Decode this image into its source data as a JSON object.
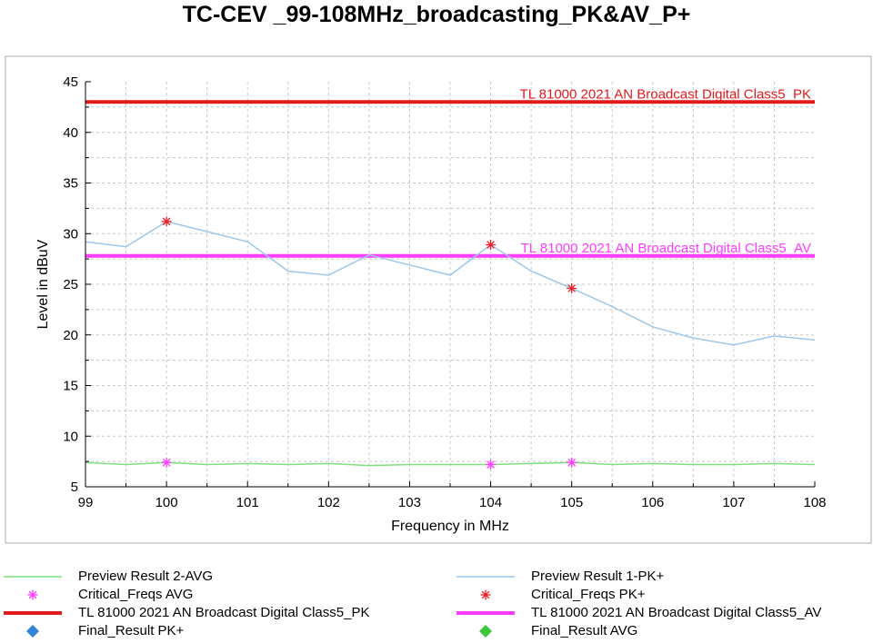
{
  "chart_data": {
    "type": "line",
    "title": "TC-CEV _99-108MHz_broadcasting_PK&AV_P+",
    "xlabel": "Frequency in MHz",
    "ylabel": "Level in dBuV",
    "xlim": [
      99,
      108
    ],
    "ylim": [
      5,
      45
    ],
    "x_ticks": [
      99,
      100,
      101,
      102,
      103,
      104,
      105,
      106,
      107,
      108
    ],
    "y_ticks": [
      5,
      10,
      15,
      20,
      25,
      30,
      35,
      40,
      45
    ],
    "grid": true,
    "legend_placement": "bottom",
    "series": [
      {
        "name": "Preview Result 2-AVG",
        "kind": "line",
        "color": "#7ee07e",
        "x": [
          99,
          99.5,
          100,
          100.5,
          101,
          101.5,
          102,
          102.5,
          103,
          103.5,
          104,
          104.5,
          105,
          105.5,
          106,
          106.5,
          107,
          107.5,
          108
        ],
        "y": [
          7.4,
          7.2,
          7.4,
          7.2,
          7.3,
          7.2,
          7.3,
          7.1,
          7.2,
          7.2,
          7.2,
          7.3,
          7.4,
          7.2,
          7.3,
          7.2,
          7.2,
          7.3,
          7.2
        ]
      },
      {
        "name": "Preview Result 1-PK+",
        "kind": "line",
        "color": "#9cc7ea",
        "x": [
          99,
          99.5,
          100,
          100.5,
          101,
          101.5,
          102,
          102.5,
          103,
          103.5,
          104,
          104.5,
          105,
          105.5,
          106,
          106.5,
          107,
          107.5,
          108
        ],
        "y": [
          29.2,
          28.7,
          31.2,
          30.2,
          29.2,
          26.3,
          25.9,
          27.9,
          26.9,
          25.9,
          28.9,
          26.3,
          24.6,
          22.8,
          20.8,
          19.7,
          19.0,
          19.9,
          19.5
        ]
      },
      {
        "name": "Critical_Freqs AVG",
        "kind": "marker",
        "marker": "asterisk",
        "color": "#ff3cff",
        "x": [
          100,
          104,
          105
        ],
        "y": [
          7.4,
          7.2,
          7.4
        ]
      },
      {
        "name": "Critical_Freqs PK+",
        "kind": "marker",
        "marker": "asterisk",
        "color": "#e8202a",
        "x": [
          100,
          104,
          105
        ],
        "y": [
          31.2,
          28.9,
          24.6
        ]
      },
      {
        "name": "TL 81000 2021 AN Broadcast Digital Class5_PK",
        "kind": "limit",
        "color": "#e31a1c",
        "label": "TL 81000 2021 AN Broadcast Digital Class5_PK",
        "x": [
          99,
          108
        ],
        "y": [
          43,
          43
        ]
      },
      {
        "name": "TL 81000 2021 AN Broadcast Digital Class5_AV",
        "kind": "limit",
        "color": "#ff3cff",
        "label": "TL 81000 2021 AN Broadcast Digital Class5_AV",
        "x": [
          99,
          108
        ],
        "y": [
          27.8,
          27.8
        ]
      },
      {
        "name": "Final_Result PK+",
        "kind": "marker",
        "marker": "diamond",
        "color": "#2f86d6",
        "x": [],
        "y": []
      },
      {
        "name": "Final_Result AVG",
        "kind": "marker",
        "marker": "diamond",
        "color": "#3cc63c",
        "x": [],
        "y": []
      }
    ]
  },
  "legend": [
    {
      "label": "Preview Result 2-AVG",
      "symbol": "line",
      "color": "#7ee07e",
      "col": 0,
      "row": 0
    },
    {
      "label": "Preview Result 1-PK+",
      "symbol": "line",
      "color": "#9cc7ea",
      "col": 1,
      "row": 0
    },
    {
      "label": "Critical_Freqs AVG",
      "symbol": "asterisk",
      "color": "#ff3cff",
      "col": 0,
      "row": 1
    },
    {
      "label": "Critical_Freqs PK+",
      "symbol": "asterisk",
      "color": "#e8202a",
      "col": 1,
      "row": 1
    },
    {
      "label": "TL 81000 2021 AN Broadcast Digital Class5_PK",
      "symbol": "thickline",
      "color": "#e31a1c",
      "col": 0,
      "row": 2
    },
    {
      "label": "TL 81000 2021 AN Broadcast Digital Class5_AV",
      "symbol": "thickline",
      "color": "#ff3cff",
      "col": 1,
      "row": 2
    },
    {
      "label": "Final_Result PK+",
      "symbol": "diamond",
      "color": "#2f86d6",
      "col": 0,
      "row": 3
    },
    {
      "label": "Final_Result AVG",
      "symbol": "diamond",
      "color": "#3cc63c",
      "col": 1,
      "row": 3
    }
  ]
}
